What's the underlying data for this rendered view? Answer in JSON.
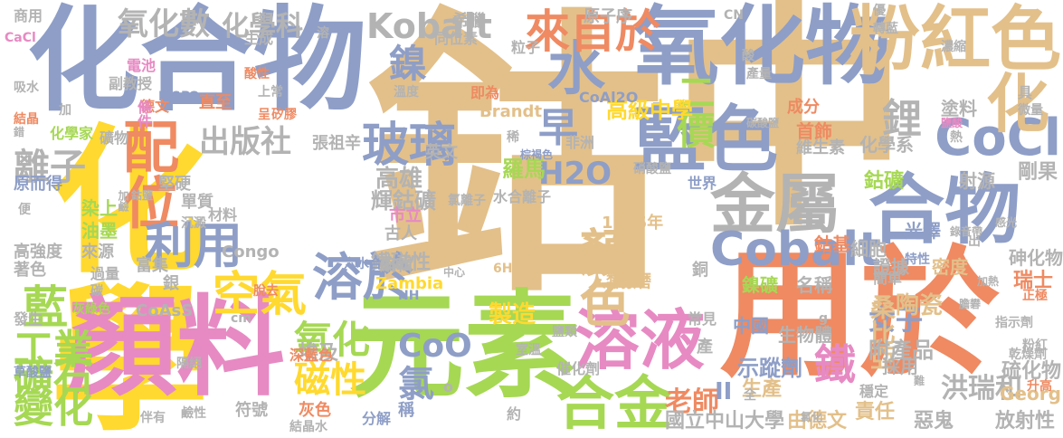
{
  "word_cloud": {
    "background": "#ffffff",
    "palette": [
      "#e3c08a",
      "#8e9ec7",
      "#ef8a62",
      "#a6d854",
      "#e78ac3",
      "#ffd92f",
      "#66c2a5",
      "#b3b3b3"
    ],
    "words": [
      {
        "text": "鈷",
        "color": "#e3c08a"
      },
      {
        "text": "中",
        "color": "#e3c08a"
      },
      {
        "text": "化學",
        "color": "#ffd92f"
      },
      {
        "text": "化合物",
        "color": "#8e9ec7"
      },
      {
        "text": "用於",
        "color": "#ef8a62"
      },
      {
        "text": "元素",
        "color": "#a6d854"
      },
      {
        "text": "顏料",
        "color": "#e78ac3"
      },
      {
        "text": "氧化物",
        "color": "#8e9ec7"
      },
      {
        "text": "粉紅色",
        "color": "#e3c08a"
      },
      {
        "text": "合物",
        "color": "#8e9ec7"
      },
      {
        "text": "藍色",
        "color": "#8e9ec7"
      },
      {
        "text": "CoCl",
        "color": "#8e9ec7"
      },
      {
        "text": "溶液",
        "color": "#e78ac3"
      },
      {
        "text": "金屬",
        "color": "#b3b3b3"
      },
      {
        "text": "合金",
        "color": "#a6d854"
      },
      {
        "text": "水",
        "color": "#8e9ec7"
      },
      {
        "text": "化",
        "color": "#e3c08a"
      },
      {
        "text": "Cobalt",
        "color": "#8e9ec7"
      },
      {
        "text": "顏色",
        "color": "#e3c08a"
      },
      {
        "text": "配位",
        "color": "#ef8a62"
      },
      {
        "text": "溶於",
        "color": "#8e9ec7"
      },
      {
        "text": "利用",
        "color": "#8e9ec7"
      },
      {
        "text": "空氣",
        "color": "#ffd92f"
      },
      {
        "text": "玻璃",
        "color": "#8e9ec7"
      },
      {
        "text": "來自於",
        "color": "#ef8a62"
      },
      {
        "text": "Kobalt",
        "color": "#b3b3b3"
      },
      {
        "text": "鎳",
        "color": "#8e9ec7"
      },
      {
        "text": "早",
        "color": "#8e9ec7"
      },
      {
        "text": "H2O",
        "color": "#8e9ec7"
      },
      {
        "text": "二價",
        "color": "#a6d854"
      },
      {
        "text": "鋰",
        "color": "#b3b3b3"
      },
      {
        "text": "鐵",
        "color": "#e78ac3"
      },
      {
        "text": "藍",
        "color": "#a6d854"
      },
      {
        "text": "工業",
        "color": "#a6d854"
      },
      {
        "text": "礦石",
        "color": "#a6d854"
      },
      {
        "text": "變化",
        "color": "#a6d854"
      },
      {
        "text": "氧化",
        "color": "#a6d854"
      },
      {
        "text": "磁性",
        "color": "#ffd92f"
      },
      {
        "text": "CoO",
        "color": "#8e9ec7"
      },
      {
        "text": "氯",
        "color": "#8e9ec7"
      },
      {
        "text": "出版社",
        "color": "#b3b3b3"
      },
      {
        "text": "氧化數",
        "color": "#b3b3b3"
      },
      {
        "text": "化學科",
        "color": "#b3b3b3"
      },
      {
        "text": "離子",
        "color": "#b3b3b3"
      },
      {
        "text": "高級中學",
        "color": "#ffd92f"
      },
      {
        "text": "老師",
        "color": "#ef8a62"
      },
      {
        "text": "洪瑞和",
        "color": "#b3b3b3"
      },
      {
        "text": "女子",
        "color": "#8e9ec7"
      },
      {
        "text": "陶瓷",
        "color": "#e3c08a"
      },
      {
        "text": "桑比亞",
        "color": "#e3c08a"
      },
      {
        "text": "附產品",
        "color": "#b3b3b3"
      },
      {
        "text": "製造",
        "color": "#ffd92f"
      },
      {
        "text": "鐵磁性",
        "color": "#b3b3b3"
      },
      {
        "text": "輝鈷礦",
        "color": "#b3b3b3"
      },
      {
        "text": "高雄",
        "color": "#b3b3b3"
      },
      {
        "text": "羅馬",
        "color": "#a6d854"
      },
      {
        "text": "1735年",
        "color": "#e3c08a"
      },
      {
        "text": "人類",
        "color": "#e3c08a"
      },
      {
        "text": "耐磨",
        "color": "#e3c08a"
      },
      {
        "text": "國立中山大學",
        "color": "#b3b3b3"
      },
      {
        "text": "由德文",
        "color": "#e3c08a"
      },
      {
        "text": "責任",
        "color": "#e3c08a"
      },
      {
        "text": "惡鬼",
        "color": "#b3b3b3"
      },
      {
        "text": "放射性",
        "color": "#b3b3b3"
      },
      {
        "text": "硫化物",
        "color": "#b3b3b3"
      },
      {
        "text": "Georg",
        "color": "#e3c08a"
      },
      {
        "text": "Brandt",
        "color": "#e3c08a"
      },
      {
        "text": "CoAl2O",
        "color": "#8e9ec7"
      },
      {
        "text": "Congo",
        "color": "#b3b3b3"
      },
      {
        "text": "Zambia",
        "color": "#ffd92f"
      },
      {
        "text": "CoAsS",
        "color": "#b3b3b3"
      },
      {
        "text": "LiCoO",
        "color": "#8e9ec7"
      },
      {
        "text": "CaCl",
        "color": "#e78ac3"
      },
      {
        "text": "6H2O",
        "color": "#e3c08a"
      },
      {
        "text": "NH",
        "color": "#8e9ec7"
      },
      {
        "text": "埃及",
        "color": "#b3b3b3"
      },
      {
        "text": "示蹤劑",
        "color": "#8e9ec7"
      },
      {
        "text": "生產",
        "color": "#e3c08a"
      },
      {
        "text": "中國",
        "color": "#8e9ec7"
      },
      {
        "text": "生物體",
        "color": "#b3b3b3"
      },
      {
        "text": "證據",
        "color": "#b3b3b3"
      },
      {
        "text": "密度",
        "color": "#e3c08a"
      },
      {
        "text": "特性",
        "color": "#8e9ec7"
      },
      {
        "text": "瑞士",
        "color": "#ef8a62"
      },
      {
        "text": "砷化物",
        "color": "#b3b3b3"
      },
      {
        "text": "剛果",
        "color": "#b3b3b3"
      },
      {
        "text": "首飾",
        "color": "#ef8a62"
      },
      {
        "text": "維生素",
        "color": "#b3b3b3"
      },
      {
        "text": "化學系",
        "color": "#b3b3b3"
      },
      {
        "text": "鈷礦",
        "color": "#a6d854"
      },
      {
        "text": "射源",
        "color": "#b3b3b3"
      },
      {
        "text": "塗料",
        "color": "#b3b3b3"
      },
      {
        "text": "光澤",
        "color": "#8e9ec7"
      },
      {
        "text": "細胞",
        "color": "#b3b3b3"
      },
      {
        "text": "鈷基",
        "color": "#ef8a62"
      },
      {
        "text": "原子序",
        "color": "#b3b3b3"
      },
      {
        "text": "同位素",
        "color": "#b3b3b3"
      },
      {
        "text": "希臘",
        "color": "#b3b3b3"
      },
      {
        "text": "粒子",
        "color": "#b3b3b3"
      },
      {
        "text": "商用",
        "color": "#b3b3b3"
      },
      {
        "text": "生成",
        "color": "#b3b3b3"
      },
      {
        "text": "電池",
        "color": "#e78ac3"
      },
      {
        "text": "副教授",
        "color": "#b3b3b3"
      },
      {
        "text": "德文",
        "color": "#ef8a62"
      },
      {
        "text": "條件",
        "color": "#e78ac3"
      },
      {
        "text": "直至",
        "color": "#ef8a62"
      },
      {
        "text": "化學家",
        "color": "#a6d854"
      },
      {
        "text": "礦物",
        "color": "#b3b3b3"
      },
      {
        "text": "原而得",
        "color": "#8e9ec7"
      },
      {
        "text": "染上",
        "color": "#a6d854"
      },
      {
        "text": "油墨",
        "color": "#a6d854"
      },
      {
        "text": "高強度",
        "color": "#b3b3b3"
      },
      {
        "text": "著色",
        "color": "#b3b3b3"
      },
      {
        "text": "來源",
        "color": "#b3b3b3"
      },
      {
        "text": "過量",
        "color": "#b3b3b3"
      },
      {
        "text": "富集",
        "color": "#b3b3b3"
      },
      {
        "text": "銀",
        "color": "#b3b3b3"
      },
      {
        "text": "單質",
        "color": "#b3b3b3"
      },
      {
        "text": "材料",
        "color": "#b3b3b3"
      },
      {
        "text": "堅硬",
        "color": "#b3b3b3"
      },
      {
        "text": "張祖辛",
        "color": "#b3b3b3"
      },
      {
        "text": "英文",
        "color": "#b3b3b3"
      },
      {
        "text": "古人",
        "color": "#b3b3b3"
      },
      {
        "text": "市立",
        "color": "#e78ac3"
      },
      {
        "text": "世界",
        "color": "#8e9ec7"
      },
      {
        "text": "成分",
        "color": "#ef8a62"
      },
      {
        "text": "水合離子",
        "color": "#b3b3b3"
      },
      {
        "text": "氯離子",
        "color": "#b3b3b3"
      },
      {
        "text": "硝酸鹽",
        "color": "#b3b3b3"
      },
      {
        "text": "即為",
        "color": "#ef8a62"
      },
      {
        "text": "非洲",
        "color": "#b3b3b3"
      },
      {
        "text": "深藍色",
        "color": "#ef8a62"
      },
      {
        "text": "符號",
        "color": "#b3b3b3"
      },
      {
        "text": "灰色",
        "color": "#ef8a62"
      },
      {
        "text": "稱",
        "color": "#8e9ec7"
      },
      {
        "text": "催化劑",
        "color": "#b3b3b3"
      },
      {
        "text": "常見",
        "color": "#b3b3b3"
      },
      {
        "text": "名稱",
        "color": "#b3b3b3"
      },
      {
        "text": "鎳礦",
        "color": "#a6d854"
      },
      {
        "text": "簡單",
        "color": "#b3b3b3"
      },
      {
        "text": "採用",
        "color": "#b3b3b3"
      },
      {
        "text": "產",
        "color": "#b3b3b3"
      },
      {
        "text": "銅",
        "color": "#b3b3b3"
      },
      {
        "text": "碳",
        "color": "#b3b3b3"
      },
      {
        "text": "正極",
        "color": "#ef8a62"
      },
      {
        "text": "發生",
        "color": "#b3b3b3"
      },
      {
        "text": "錄音帶",
        "color": "#b3b3b3"
      },
      {
        "text": "感光",
        "color": "#b3b3b3"
      },
      {
        "text": "加熱",
        "color": "#b3b3b3"
      },
      {
        "text": "膽礬",
        "color": "#b3b3b3"
      },
      {
        "text": "升高",
        "color": "#ef8a62"
      },
      {
        "text": "乾燥劑",
        "color": "#b3b3b3"
      },
      {
        "text": "指示劑",
        "color": "#b3b3b3"
      },
      {
        "text": "粉紅",
        "color": "#b3b3b3"
      },
      {
        "text": "穩定",
        "color": "#b3b3b3"
      },
      {
        "text": "全",
        "color": "#b3b3b3"
      },
      {
        "text": "II",
        "color": "#8e9ec7"
      },
      {
        "text": "約",
        "color": "#b3b3b3"
      },
      {
        "text": "分解",
        "color": "#8e9ec7"
      },
      {
        "text": "結晶水",
        "color": "#b3b3b3"
      },
      {
        "text": "伴有",
        "color": "#b3b3b3"
      },
      {
        "text": "隔絕",
        "color": "#b3b3b3"
      },
      {
        "text": "鹼性",
        "color": "#b3b3b3"
      },
      {
        "text": "草酸鹽",
        "color": "#8e9ec7"
      },
      {
        "text": "灰綠色",
        "color": "#a6d854"
      },
      {
        "text": "中心",
        "color": "#b3b3b3"
      },
      {
        "text": "六水合",
        "color": "#8e9ec7"
      },
      {
        "text": "編輯",
        "color": "#b3b3b3"
      },
      {
        "text": "脫去",
        "color": "#ef8a62"
      },
      {
        "text": "沉澱",
        "color": "#b3b3b3"
      },
      {
        "text": "鈷鹽",
        "color": "#b3b3b3"
      },
      {
        "text": "加鹼",
        "color": "#b3b3b3"
      },
      {
        "text": "便",
        "color": "#b3b3b3"
      },
      {
        "text": "錯",
        "color": "#b3b3b3"
      },
      {
        "text": "結晶",
        "color": "#ef8a62"
      },
      {
        "text": "吸水",
        "color": "#b3b3b3"
      },
      {
        "text": "加",
        "color": "#b3b3b3"
      },
      {
        "text": "溫度",
        "color": "#b3b3b3"
      },
      {
        "text": "矽膠",
        "color": "#ef8a62"
      },
      {
        "text": "呈",
        "color": "#ef8a62"
      },
      {
        "text": "上常",
        "color": "#b3b3b3"
      },
      {
        "text": "酸性",
        "color": "#ef8a62"
      },
      {
        "text": "B",
        "color": "#8e9ec7"
      },
      {
        "text": "溶",
        "color": "#b3b3b3"
      },
      {
        "text": "CN",
        "color": "#b3b3b3"
      },
      {
        "text": "酸",
        "color": "#b3b3b3"
      },
      {
        "text": "產量",
        "color": "#b3b3b3"
      },
      {
        "text": "優",
        "color": "#b3b3b3"
      },
      {
        "text": "轉藍",
        "color": "#b3b3b3"
      },
      {
        "text": "濃縮",
        "color": "#b3b3b3"
      },
      {
        "text": "具",
        "color": "#b3b3b3"
      },
      {
        "text": "微量",
        "color": "#b3b3b3"
      },
      {
        "text": "鹽酸",
        "color": "#e78ac3"
      },
      {
        "text": "熱",
        "color": "#b3b3b3"
      },
      {
        "text": "碳酸鹽",
        "color": "#b3b3b3"
      },
      {
        "text": "氯化",
        "color": "#b3b3b3"
      },
      {
        "text": "出",
        "color": "#b3b3b3"
      },
      {
        "text": "稀",
        "color": "#b3b3b3"
      },
      {
        "text": "棕褐色",
        "color": "#8e9ec7"
      },
      {
        "text": "g",
        "color": "#b3b3b3"
      },
      {
        "text": "難",
        "color": "#b3b3b3"
      },
      {
        "text": "室溫",
        "color": "#b3b3b3"
      },
      {
        "text": "鹽類",
        "color": "#b3b3b3"
      },
      {
        "text": "o",
        "color": "#b3b3b3"
      },
      {
        "text": "cm",
        "color": "#b3b3b3"
      }
    ]
  }
}
